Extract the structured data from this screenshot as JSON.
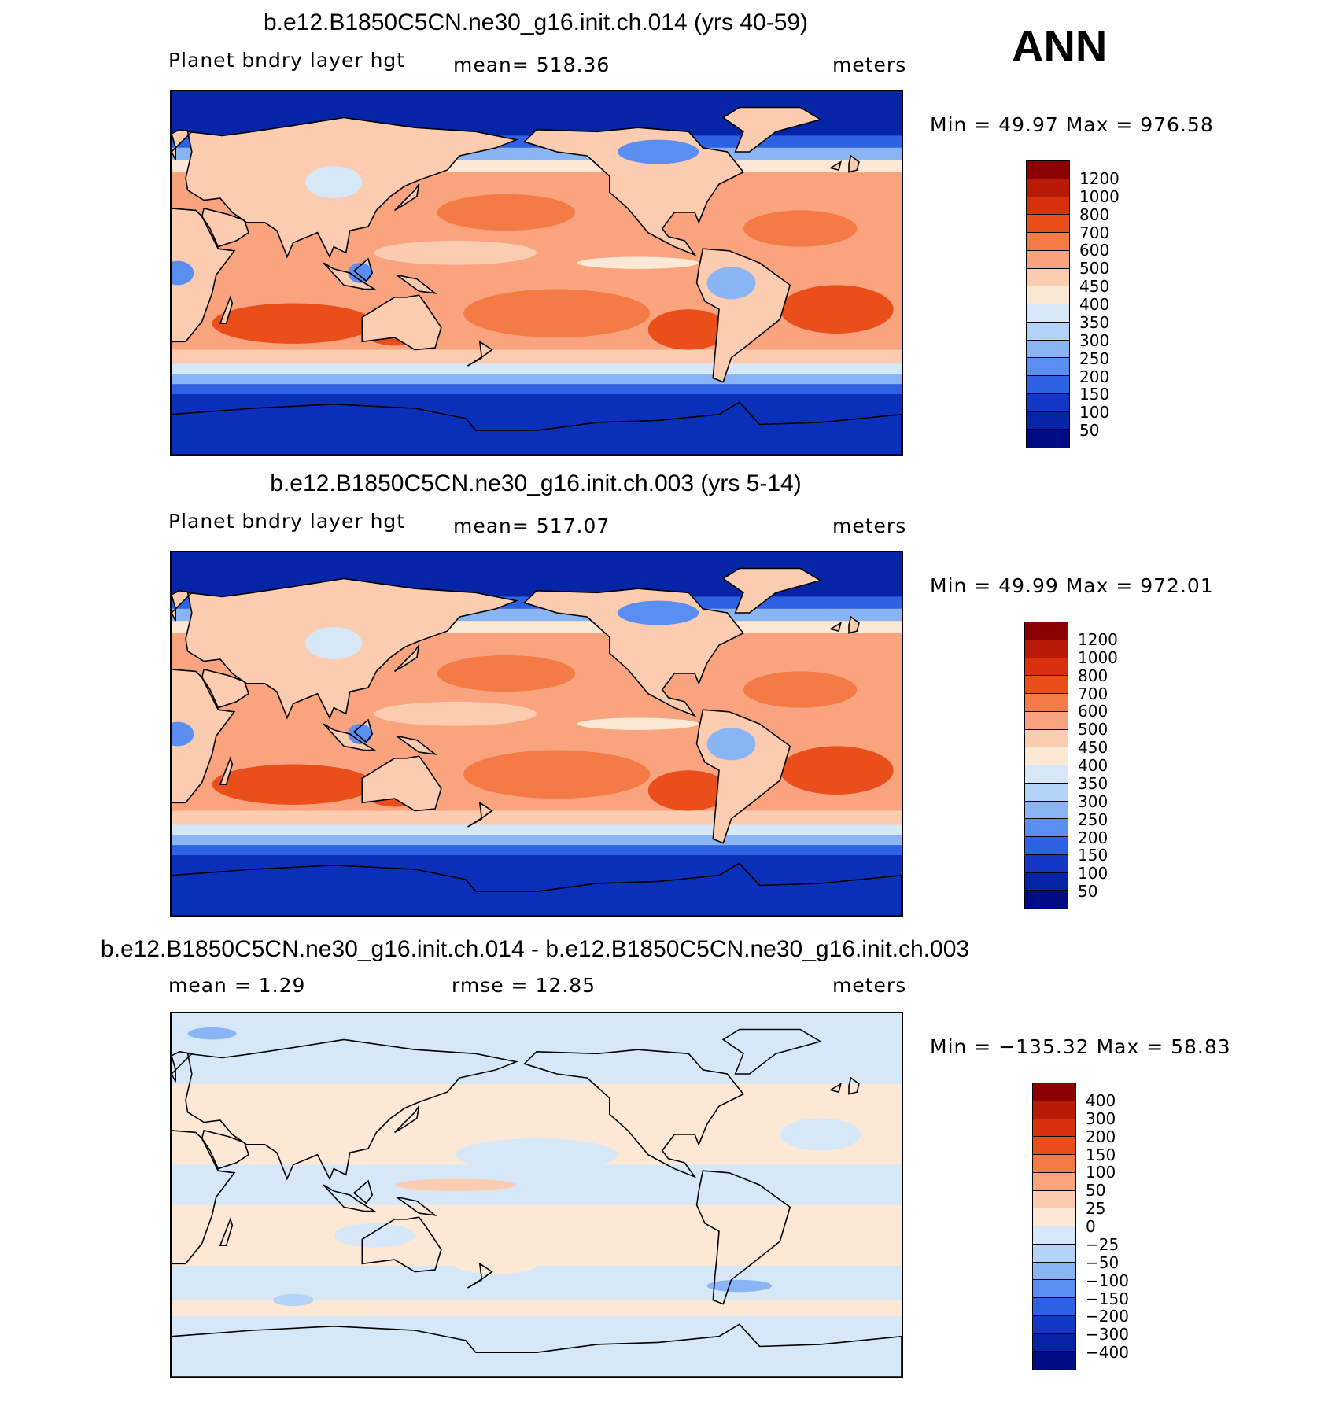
{
  "season": "ANN",
  "panels": [
    {
      "title": "b.e12.B1850C5CN.ne30_g16.init.ch.014 (yrs 40-59)",
      "left_text": "Planet bndry layer hgt",
      "center_text": "mean=  518.36",
      "right_text": "meters",
      "minmax": "Min =   49.97  Max  =  976.58",
      "colorbar": {
        "labels": [
          "1200",
          "1000",
          "800",
          "700",
          "600",
          "500",
          "450",
          "400",
          "350",
          "300",
          "250",
          "200",
          "150",
          "100",
          "50"
        ],
        "colors": [
          "#8b0000",
          "#b81a08",
          "#d7300a",
          "#e94e1b",
          "#f47b45",
          "#f9a47e",
          "#fcccb0",
          "#fde8d5",
          "#d6e8f8",
          "#b4d3f8",
          "#8ab5f5",
          "#5a8ef0",
          "#2e62e4",
          "#1338c8",
          "#0624a6",
          "#000c84"
        ]
      }
    },
    {
      "title": "b.e12.B1850C5CN.ne30_g16.init.ch.003 (yrs 5-14)",
      "left_text": "Planet bndry layer hgt",
      "center_text": "mean=  517.07",
      "right_text": "meters",
      "minmax": "Min =   49.99  Max  =  972.01",
      "colorbar": {
        "labels": [
          "1200",
          "1000",
          "800",
          "700",
          "600",
          "500",
          "450",
          "400",
          "350",
          "300",
          "250",
          "200",
          "150",
          "100",
          "50"
        ],
        "colors": [
          "#8b0000",
          "#b81a08",
          "#d7300a",
          "#e94e1b",
          "#f47b45",
          "#f9a47e",
          "#fcccb0",
          "#fde8d5",
          "#d6e8f8",
          "#b4d3f8",
          "#8ab5f5",
          "#5a8ef0",
          "#2e62e4",
          "#1338c8",
          "#0624a6",
          "#000c84"
        ]
      }
    },
    {
      "title": "b.e12.B1850C5CN.ne30_g16.init.ch.014 - b.e12.B1850C5CN.ne30_g16.init.ch.003",
      "left_text": "mean =     1.29",
      "center_text": "rmse =    12.85",
      "right_text": "meters",
      "minmax": "Min = −135.32  Max  =    58.83",
      "colorbar": {
        "labels": [
          "400",
          "300",
          "200",
          "150",
          "100",
          "50",
          "25",
          "0",
          "−25",
          "−50",
          "−100",
          "−150",
          "−200",
          "−300",
          "−400"
        ],
        "colors": [
          "#8b0000",
          "#b81a08",
          "#d7300a",
          "#e94e1b",
          "#f47b45",
          "#f9a47e",
          "#fcccb0",
          "#fde8d5",
          "#d6e8f8",
          "#b4d3f8",
          "#8ab5f5",
          "#5a8ef0",
          "#2e62e4",
          "#1338c8",
          "#0624a6",
          "#000c84"
        ]
      }
    }
  ],
  "colors": {
    "polar_blue": "#0a2fb8",
    "land_outline": "#000000",
    "diff_pos": "#fde8d5",
    "diff_neg": "#d6e8f8"
  }
}
